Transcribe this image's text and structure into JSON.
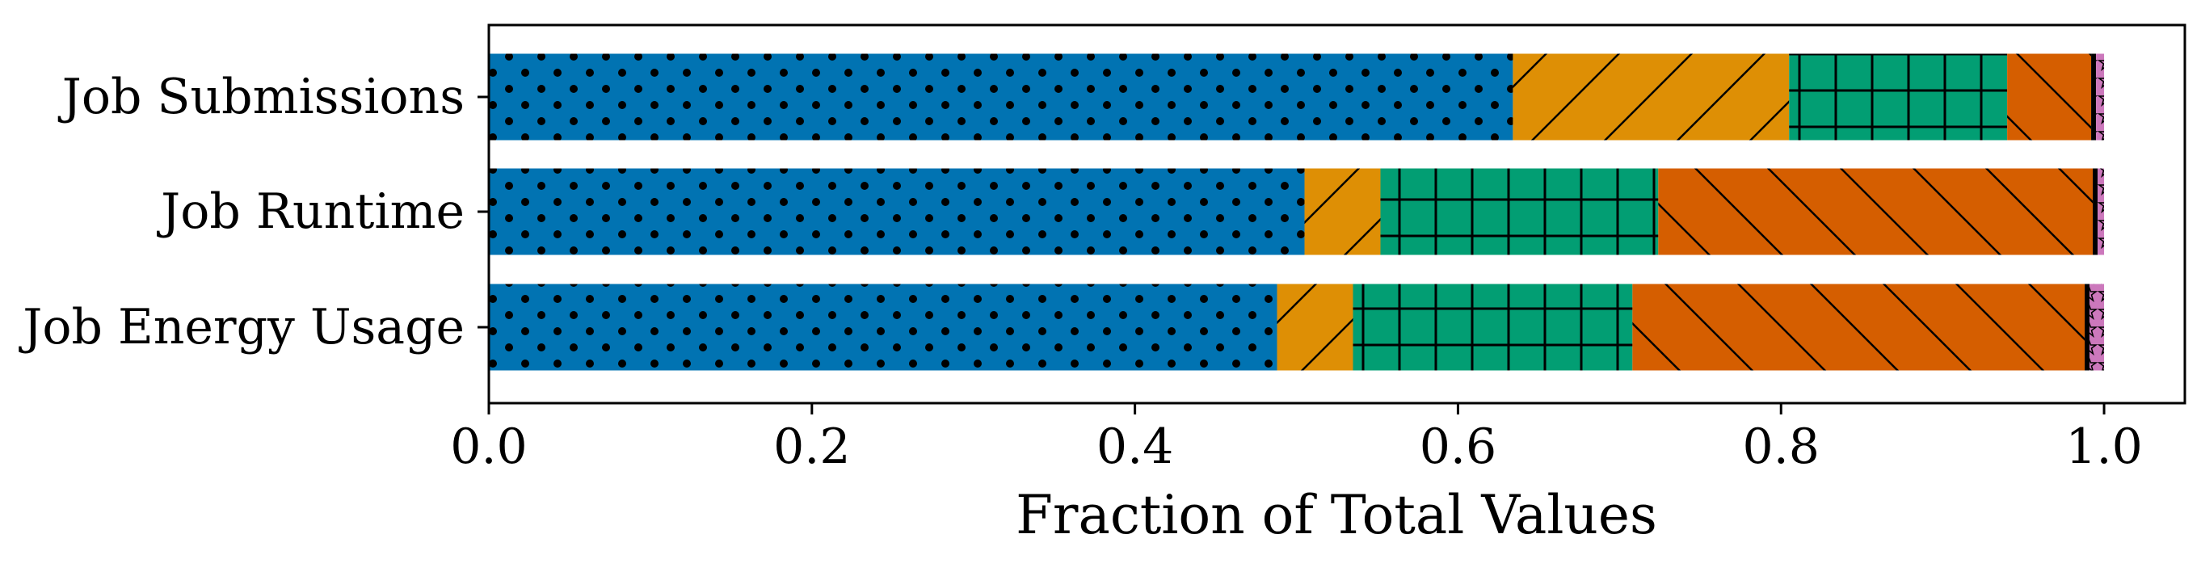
{
  "chart_data": {
    "type": "bar",
    "orientation": "horizontal",
    "stacked": true,
    "title": "",
    "xlabel": "Fraction of Total Values",
    "ylabel": "",
    "xlim": [
      0.0,
      1.05
    ],
    "xticks": [
      "0.0",
      "0.2",
      "0.4",
      "0.6",
      "0.8",
      "1.0"
    ],
    "grid": false,
    "legend": "none",
    "categories": [
      "Job Submissions",
      "Job Runtime",
      "Job Energy Usage"
    ],
    "series": [
      {
        "values": [
          0.634,
          0.505,
          0.488
        ],
        "color": "#0173b2",
        "hatch": "dots"
      },
      {
        "values": [
          0.171,
          0.047,
          0.047
        ],
        "color": "#de8f05",
        "hatch": "forward-diagonal"
      },
      {
        "values": [
          0.135,
          0.172,
          0.173
        ],
        "color": "#029e73",
        "hatch": "grid"
      },
      {
        "values": [
          0.052,
          0.269,
          0.28
        ],
        "color": "#d55e00",
        "hatch": "back-diagonal"
      },
      {
        "values": [
          0.003,
          0.003,
          0.003
        ],
        "color": "#000000",
        "hatch": "none"
      },
      {
        "values": [
          0.005,
          0.004,
          0.009
        ],
        "color": "#cc78bc",
        "hatch": "stars"
      }
    ]
  }
}
